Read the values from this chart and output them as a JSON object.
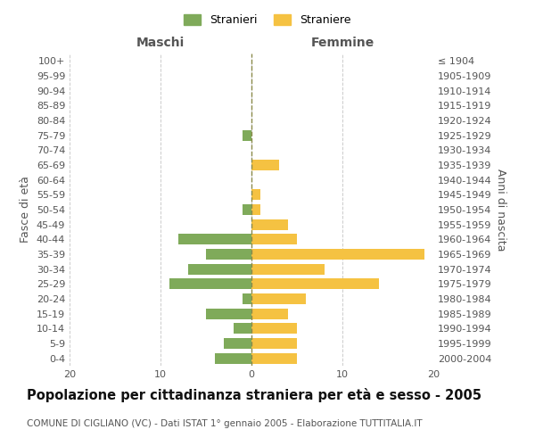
{
  "age_groups": [
    "0-4",
    "5-9",
    "10-14",
    "15-19",
    "20-24",
    "25-29",
    "30-34",
    "35-39",
    "40-44",
    "45-49",
    "50-54",
    "55-59",
    "60-64",
    "65-69",
    "70-74",
    "75-79",
    "80-84",
    "85-89",
    "90-94",
    "95-99",
    "100+"
  ],
  "birth_years": [
    "2000-2004",
    "1995-1999",
    "1990-1994",
    "1985-1989",
    "1980-1984",
    "1975-1979",
    "1970-1974",
    "1965-1969",
    "1960-1964",
    "1955-1959",
    "1950-1954",
    "1945-1949",
    "1940-1944",
    "1935-1939",
    "1930-1934",
    "1925-1929",
    "1920-1924",
    "1915-1919",
    "1910-1914",
    "1905-1909",
    "≤ 1904"
  ],
  "maschi": [
    4,
    3,
    2,
    5,
    1,
    9,
    7,
    5,
    8,
    0,
    1,
    0,
    0,
    0,
    0,
    1,
    0,
    0,
    0,
    0,
    0
  ],
  "femmine": [
    5,
    5,
    5,
    4,
    6,
    14,
    8,
    19,
    5,
    4,
    1,
    1,
    0,
    3,
    0,
    0,
    0,
    0,
    0,
    0,
    0
  ],
  "maschi_color": "#7faa5a",
  "femmine_color": "#f5c242",
  "center_line_color": "#8a8a4a",
  "grid_color": "#cccccc",
  "bg_color": "#ffffff",
  "title": "Popolazione per cittadinanza straniera per età e sesso - 2005",
  "subtitle": "COMUNE DI CIGLIANO (VC) - Dati ISTAT 1° gennaio 2005 - Elaborazione TUTTITALIA.IT",
  "xlabel_left": "Maschi",
  "xlabel_right": "Femmine",
  "ylabel_left": "Fasce di età",
  "ylabel_right": "Anni di nascita",
  "legend_maschi": "Stranieri",
  "legend_femmine": "Straniere",
  "xlim": 20,
  "bar_height": 0.72,
  "title_fontsize": 10.5,
  "subtitle_fontsize": 7.5,
  "label_fontsize": 9,
  "tick_fontsize": 8,
  "legend_fontsize": 9
}
